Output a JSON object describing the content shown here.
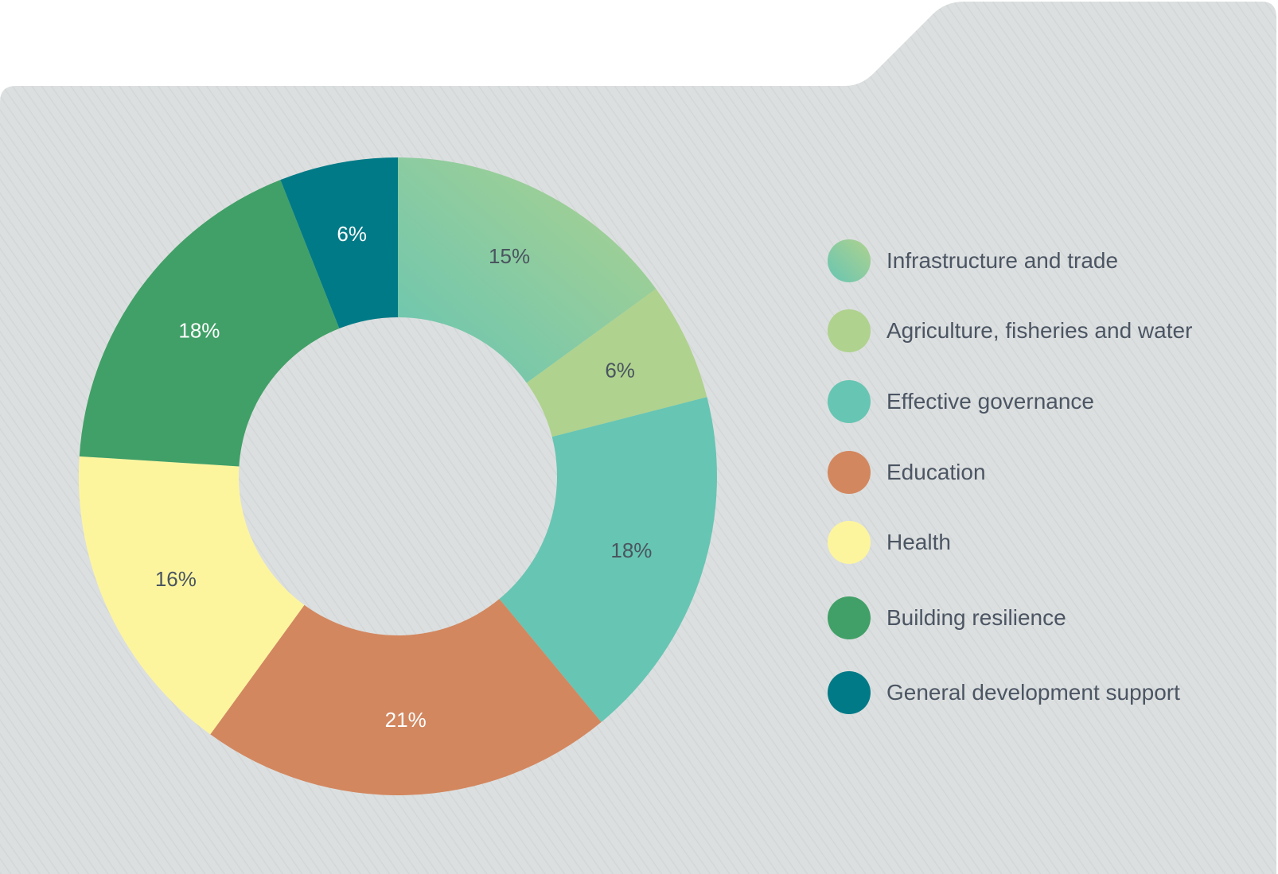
{
  "chart_data": {
    "type": "pie",
    "donut": true,
    "categories": [
      "Infrastructure and trade",
      "Agriculture, fisheries and water",
      "Effective governance",
      "Education",
      "Health",
      "Building resilience",
      "General development support"
    ],
    "values": [
      15,
      6,
      18,
      21,
      16,
      18,
      6
    ],
    "data_labels": [
      "15%",
      "6%",
      "18%",
      "21%",
      "16%",
      "18%",
      "6%"
    ],
    "colors": [
      "#8fcca0",
      "#afd28e",
      "#67c5b3",
      "#d3875f",
      "#fdf59e",
      "#41a067",
      "#017a87"
    ],
    "label_colors": [
      "#4a5560",
      "#4a5560",
      "#4a5560",
      "#ffffff",
      "#4a5560",
      "#ffffff",
      "#ffffff"
    ],
    "legend_position": "right",
    "title": "",
    "background_color": "#dcdfdf"
  }
}
